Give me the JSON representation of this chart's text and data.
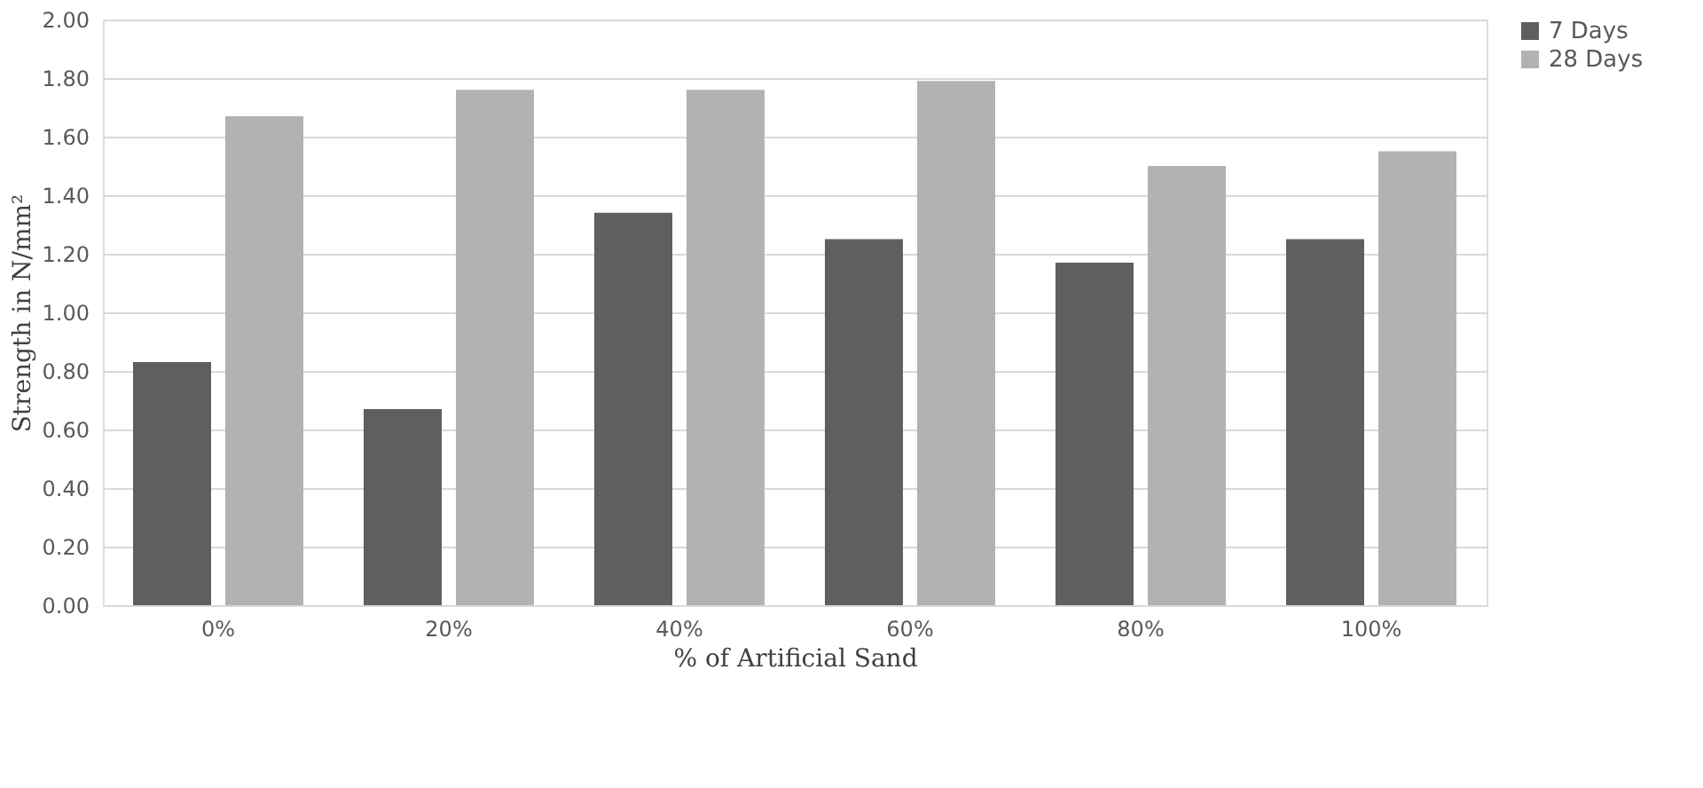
{
  "chart_data": {
    "type": "bar",
    "xlabel": "% of Artificial Sand",
    "ylabel": "Strength in N/mm²",
    "categories": [
      "0%",
      "20%",
      "40%",
      "60%",
      "80%",
      "100%"
    ],
    "series": [
      {
        "name": "7 Days",
        "color": "#5f5f5f",
        "values": [
          0.83,
          0.67,
          1.34,
          1.25,
          1.17,
          1.25
        ]
      },
      {
        "name": "28 Days",
        "color": "#b2b2b2",
        "values": [
          1.67,
          1.76,
          1.76,
          1.79,
          1.5,
          1.55
        ]
      }
    ],
    "ylim": [
      0,
      2
    ],
    "yticks": [
      {
        "value": 0,
        "label": "0.00"
      },
      {
        "value": 0.2,
        "label": "0.20"
      },
      {
        "value": 0.4,
        "label": "0.40"
      },
      {
        "value": 0.6,
        "label": "0.60"
      },
      {
        "value": 0.8,
        "label": "0.80"
      },
      {
        "value": 1,
        "label": "1.00"
      },
      {
        "value": 1.2,
        "label": "1.20"
      },
      {
        "value": 1.4,
        "label": "1.40"
      },
      {
        "value": 1.6,
        "label": "1.60"
      },
      {
        "value": 1.8,
        "label": "1.80"
      },
      {
        "value": 2,
        "label": "2.00"
      }
    ],
    "grid": "y",
    "legend": "right"
  }
}
